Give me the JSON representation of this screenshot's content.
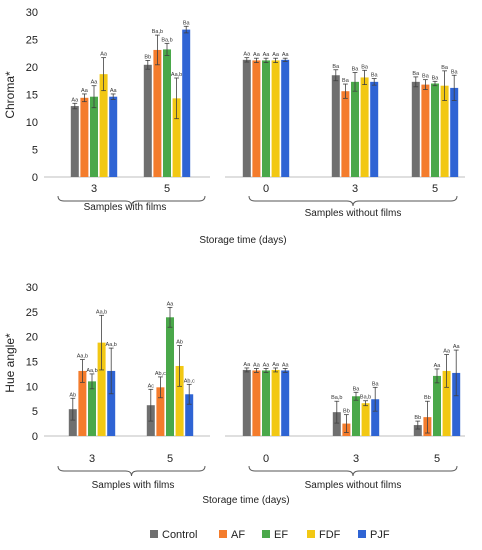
{
  "colors": {
    "Control": "#6f6f6f",
    "AF": "#f47c2c",
    "EF": "#4aa84a",
    "FDF": "#f2c814",
    "PJF": "#2f64d4",
    "axis": "#bfbfbf",
    "brace": "#555555",
    "error": "#404040"
  },
  "chart_data": [
    {
      "type": "bar",
      "ylabel": "Chroma*",
      "ylim": [
        0,
        30
      ],
      "yticks": [
        0,
        5,
        10,
        15,
        20,
        25,
        30
      ],
      "series_names": [
        "Control",
        "AF",
        "EF",
        "FDF",
        "PJF"
      ],
      "group_labels": [
        "Samples with films",
        "Samples without films"
      ],
      "xlabel": "Storage time (days)",
      "groups": [
        {
          "label": "3",
          "values": [
            12.9,
            14.4,
            14.6,
            18.7,
            14.6
          ],
          "errors": [
            0.5,
            0.7,
            2.0,
            3.0,
            0.5
          ],
          "letters": [
            "Aa",
            "Aa",
            "Aa",
            "Aa",
            "Aa"
          ]
        },
        {
          "label": "5",
          "values": [
            20.4,
            23.1,
            23.2,
            14.3,
            26.8
          ],
          "errors": [
            0.8,
            2.7,
            1.1,
            3.7,
            0.6
          ],
          "letters": [
            "Bb",
            "Ba,b",
            "Ba,b",
            "Aa,b",
            "Ba"
          ]
        },
        {
          "label": "0",
          "values": [
            21.3,
            21.2,
            21.2,
            21.2,
            21.3
          ],
          "errors": [
            0.4,
            0.4,
            0.4,
            0.4,
            0.3
          ],
          "letters": [
            "Aa",
            "Aa",
            "Aa",
            "Aa",
            "Aa"
          ]
        },
        {
          "label": "3",
          "values": [
            18.5,
            15.6,
            17.3,
            18.1,
            17.3
          ],
          "errors": [
            1.0,
            1.3,
            1.7,
            1.3,
            0.6
          ],
          "letters": [
            "Ba",
            "Ba",
            "Ba",
            "Ba",
            "Ba"
          ]
        },
        {
          "label": "5",
          "values": [
            17.3,
            16.8,
            17.0,
            16.6,
            16.2
          ],
          "errors": [
            0.9,
            0.9,
            0.4,
            2.7,
            2.3
          ],
          "letters": [
            "Ba",
            "Ba",
            "Ba",
            "Ba",
            "Ba"
          ]
        }
      ]
    },
    {
      "type": "bar",
      "ylabel": "Hue angle*",
      "ylim": [
        0,
        30
      ],
      "yticks": [
        0,
        5,
        10,
        15,
        20,
        25,
        30
      ],
      "series_names": [
        "Control",
        "AF",
        "EF",
        "FDF",
        "PJF"
      ],
      "group_labels": [
        "Samples with films",
        "Samples without films"
      ],
      "xlabel": "Storage time (days)",
      "groups": [
        {
          "label": "3",
          "values": [
            5.4,
            13.1,
            11.0,
            18.8,
            13.1
          ],
          "errors": [
            2.2,
            2.3,
            1.5,
            5.5,
            4.6
          ],
          "letters": [
            "Ab",
            "Aa,b",
            "Aa,b",
            "Aa,b",
            "Aa,b"
          ]
        },
        {
          "label": "5",
          "values": [
            6.2,
            9.8,
            23.9,
            14.1,
            8.4
          ],
          "errors": [
            3.2,
            2.1,
            2.0,
            4.1,
            2.0
          ],
          "letters": [
            "Ac",
            "Ab,c",
            "Aa",
            "Ab",
            "Ab,c"
          ]
        },
        {
          "label": "0",
          "values": [
            13.3,
            13.2,
            13.2,
            13.3,
            13.2
          ],
          "errors": [
            0.4,
            0.4,
            0.4,
            0.4,
            0.4
          ],
          "letters": [
            "Aa",
            "Aa",
            "Aa",
            "Aa",
            "Aa"
          ]
        },
        {
          "label": "3",
          "values": [
            4.8,
            2.5,
            8.0,
            6.6,
            7.4
          ],
          "errors": [
            2.2,
            1.8,
            0.8,
            0.5,
            2.4
          ],
          "letters": [
            "Ba,b",
            "Bb",
            "Ba",
            "Ba,b",
            "Ba"
          ]
        },
        {
          "label": "5",
          "values": [
            2.2,
            3.8,
            12.1,
            13.1,
            12.7
          ],
          "errors": [
            0.8,
            3.2,
            1.4,
            3.3,
            4.6
          ],
          "letters": [
            "Bb",
            "Bb",
            "Aa",
            "Aa",
            "Aa"
          ]
        }
      ]
    }
  ]
}
